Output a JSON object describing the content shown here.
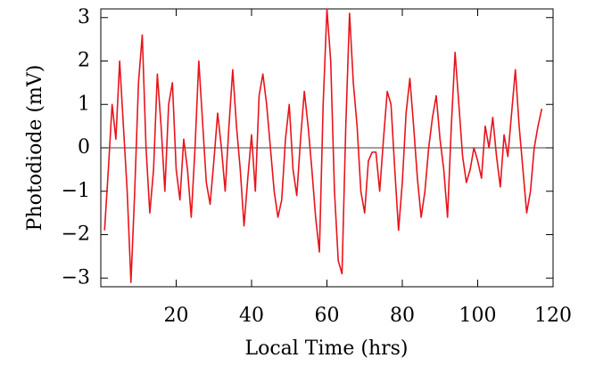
{
  "chart_data": {
    "type": "line",
    "x_label": "Local Time (hrs)",
    "y_label": "Photodiode (mV)",
    "color": "#e8141c",
    "x": [
      1,
      2,
      3,
      4,
      5,
      6,
      7,
      8,
      9,
      10,
      11,
      12,
      13,
      14,
      15,
      16,
      17,
      18,
      19,
      20,
      21,
      22,
      23,
      24,
      25,
      26,
      27,
      28,
      29,
      30,
      31,
      32,
      33,
      34,
      35,
      36,
      37,
      38,
      39,
      40,
      41,
      42,
      43,
      44,
      45,
      46,
      47,
      48,
      49,
      50,
      51,
      52,
      53,
      54,
      55,
      56,
      57,
      58,
      59,
      60,
      61,
      62,
      63,
      64,
      65,
      66,
      67,
      68,
      69,
      70,
      71,
      72,
      73,
      74,
      75,
      76,
      77,
      78,
      79,
      80,
      81,
      82,
      83,
      84,
      85,
      86,
      87,
      88,
      89,
      90,
      91,
      92,
      93,
      94,
      95,
      96,
      97,
      98,
      99,
      100,
      101,
      102,
      103,
      104,
      105,
      106,
      107,
      108,
      109,
      110,
      111,
      112,
      113,
      114,
      115,
      116,
      117
    ],
    "values": [
      -1.9,
      -0.5,
      1.0,
      0.2,
      2.0,
      0.5,
      -1.0,
      -3.1,
      -1.0,
      1.5,
      2.6,
      0.0,
      -1.5,
      -0.5,
      1.7,
      0.5,
      -1.0,
      1.0,
      1.5,
      -0.5,
      -1.2,
      0.2,
      -0.5,
      -1.6,
      0.0,
      2.0,
      0.6,
      -0.8,
      -1.3,
      -0.3,
      0.8,
      0.0,
      -1.0,
      0.5,
      1.8,
      0.5,
      -0.5,
      -1.8,
      -0.7,
      0.3,
      -1.0,
      1.2,
      1.7,
      1.0,
      0.0,
      -1.0,
      -1.6,
      -1.2,
      0.2,
      1.0,
      -0.5,
      -1.1,
      0.2,
      1.3,
      0.5,
      -0.5,
      -1.6,
      -2.4,
      1.0,
      3.2,
      2.0,
      -1.0,
      -2.6,
      -2.9,
      0.5,
      3.1,
      1.5,
      0.5,
      -1.0,
      -1.5,
      -0.3,
      -0.1,
      -0.1,
      -1.0,
      0.2,
      1.3,
      1.0,
      -0.5,
      -1.9,
      -0.8,
      0.8,
      1.6,
      0.5,
      -0.7,
      -1.6,
      -1.0,
      0.0,
      0.7,
      1.2,
      0.2,
      -0.5,
      -1.6,
      0.5,
      2.2,
      1.0,
      -0.2,
      -0.8,
      -0.5,
      0.0,
      -0.3,
      -0.7,
      0.5,
      0.0,
      0.7,
      -0.2,
      -0.9,
      0.3,
      -0.2,
      0.8,
      1.8,
      0.5,
      -0.5,
      -1.5,
      -1.0,
      0.0,
      0.5,
      0.9
    ],
    "xlim": [
      0,
      120
    ],
    "ylim": [
      -3.2,
      3.2
    ],
    "xticks": [
      20,
      40,
      60,
      80,
      100,
      120
    ],
    "yticks": [
      {
        "value": -3,
        "label": "−3"
      },
      {
        "value": -2,
        "label": "−2"
      },
      {
        "value": -1,
        "label": "−1"
      },
      0,
      1,
      2,
      3
    ]
  }
}
